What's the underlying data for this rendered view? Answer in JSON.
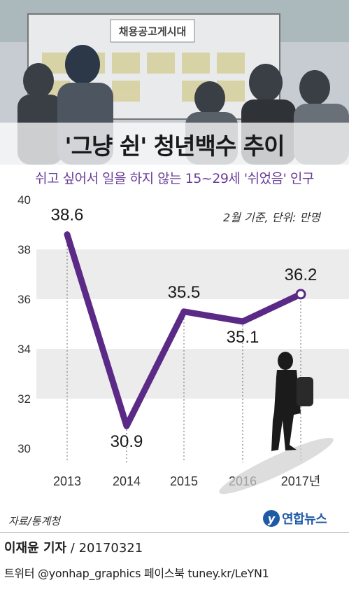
{
  "header": {
    "title": "'그냥 쉰' 청년백수 추이",
    "subtitle": "쉬고 싶어서 일을 하지 않는 15~29세 '쉬었음' 인구",
    "banner_text": "채용공고게시대"
  },
  "chart_data": {
    "type": "line",
    "title": "'그냥 쉰' 청년백수 추이",
    "subtitle": "쉬고 싶어서 일을 하지 않는 15~29세 '쉬었음' 인구",
    "note": "2월 기준, 단위: 만명",
    "categories": [
      "2013",
      "2014",
      "2015",
      "2016",
      "2017년"
    ],
    "values": [
      38.6,
      30.9,
      35.5,
      35.1,
      36.2
    ],
    "value_labels": [
      "38.6",
      "30.9",
      "35.5",
      "35.1",
      "36.2"
    ],
    "ylim": [
      30,
      40
    ],
    "yticks": [
      30,
      32,
      34,
      36,
      38,
      40
    ],
    "grid": "alternating horizontal bands",
    "line_color": "#5b2a86",
    "band_color": "#ececec"
  },
  "footer": {
    "source": "자료/통계청",
    "logo_mark": "y",
    "logo_text": "연합뉴스",
    "reporter": "이재윤 기자",
    "date": " / 20170321",
    "social": "트위터 @yonhap_graphics  페이스북 tuney.kr/LeYN1"
  }
}
